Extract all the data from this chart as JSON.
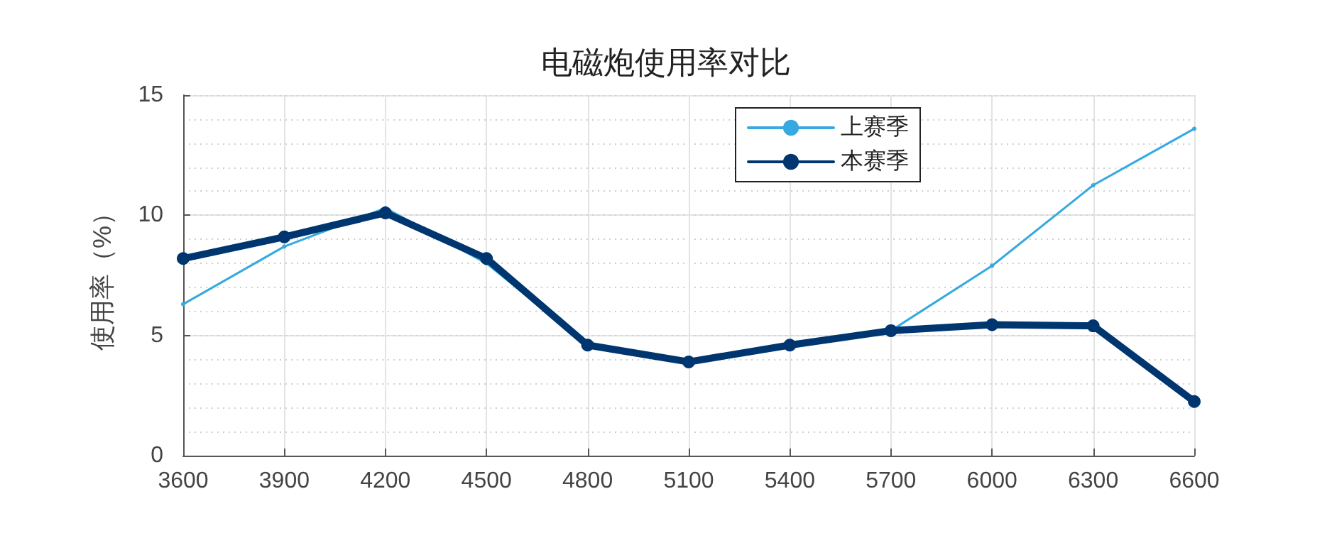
{
  "chart_data": {
    "type": "line",
    "title": "电磁炮使用率对比",
    "ylabel": "使用率（%）",
    "x": [
      3600,
      3900,
      4200,
      4500,
      4800,
      5100,
      5400,
      5700,
      6000,
      6300,
      6600
    ],
    "series": [
      {
        "name": "上赛季",
        "color": "#35a9e0",
        "marker": "circle",
        "values": [
          6.3,
          8.7,
          10.3,
          8.0,
          4.6,
          3.9,
          4.6,
          5.2,
          7.9,
          11.25,
          13.6
        ]
      },
      {
        "name": "本赛季",
        "color": "#00366f",
        "marker": "circle",
        "values": [
          8.2,
          9.1,
          10.1,
          8.2,
          4.6,
          3.9,
          4.6,
          5.2,
          5.45,
          5.4,
          2.25
        ]
      }
    ],
    "xlim": [
      3600,
      6600
    ],
    "xticks": [
      3600,
      3900,
      4200,
      4500,
      4800,
      5100,
      5400,
      5700,
      6000,
      6300,
      6600
    ],
    "ylim": [
      0,
      15
    ],
    "yticks": [
      0,
      5,
      10,
      15
    ],
    "grid": true,
    "legend": "top right",
    "line_style": "solid"
  }
}
